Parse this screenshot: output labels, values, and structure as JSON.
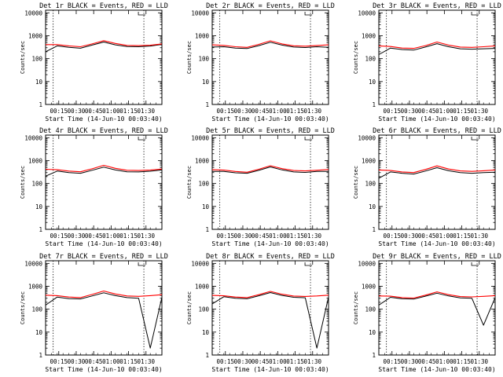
{
  "chart_data": {
    "type": "line",
    "layout": "3x3 grid",
    "xlabel": "Start Time (14-Jun-10 00:03:40)",
    "ylabel": "Counts/sec",
    "yscale": "log",
    "ylim": [
      1,
      13000
    ],
    "xlim_minutes": [
      0,
      100
    ],
    "xtick_values_minutes": [
      11.33,
      26.33,
      41.33,
      56.33,
      71.33,
      86.33
    ],
    "xtick_labels": [
      "00:15",
      "00:30",
      "00:45",
      "01:00",
      "01:15",
      "01:30"
    ],
    "ytick_values": [
      1,
      10,
      100,
      1000,
      10000
    ],
    "ytick_labels": [
      "1",
      "10",
      "100",
      "1000",
      "10000"
    ],
    "series_colors": {
      "events": "#000000",
      "lld": "#ff0000"
    },
    "vertical_markers_minutes": [
      6.5,
      84.5
    ],
    "x_minutes": [
      0,
      10,
      20,
      30,
      40,
      50,
      60,
      70,
      80,
      90,
      100
    ],
    "panels": [
      {
        "title": "Det 1r BLACK = Events, RED = LLD",
        "series": [
          {
            "name": "Events",
            "color": "#000000",
            "values": [
              200,
              360,
              310,
              285,
              390,
              530,
              400,
              335,
              330,
              355,
              420
            ]
          },
          {
            "name": "LLD",
            "color": "#ff0000",
            "values": [
              410,
              410,
              360,
              330,
              440,
              610,
              460,
              380,
              370,
              385,
              440
            ]
          }
        ]
      },
      {
        "title": "Det 2r BLACK = Events, RED = LLD",
        "series": [
          {
            "name": "Events",
            "color": "#000000",
            "values": [
              320,
              330,
              290,
              275,
              370,
              520,
              390,
              320,
              305,
              330,
              310
            ]
          },
          {
            "name": "LLD",
            "color": "#ff0000",
            "values": [
              400,
              380,
              330,
              310,
              420,
              600,
              440,
              365,
              350,
              375,
              400
            ]
          }
        ]
      },
      {
        "title": "Det 3r BLACK = Events, RED = LLD",
        "series": [
          {
            "name": "Events",
            "color": "#000000",
            "values": [
              150,
              290,
              250,
              235,
              320,
              450,
              330,
              270,
              260,
              270,
              280
            ]
          },
          {
            "name": "LLD",
            "color": "#ff0000",
            "values": [
              360,
              340,
              290,
              280,
              370,
              530,
              390,
              320,
              310,
              330,
              360
            ]
          }
        ]
      },
      {
        "title": "Det 4r BLACK = Events, RED = LLD",
        "series": [
          {
            "name": "Events",
            "color": "#000000",
            "values": [
              210,
              350,
              300,
              280,
              380,
              520,
              390,
              325,
              320,
              345,
              390
            ]
          },
          {
            "name": "LLD",
            "color": "#ff0000",
            "values": [
              420,
              400,
              350,
              325,
              440,
              620,
              460,
              380,
              370,
              385,
              430
            ]
          }
        ]
      },
      {
        "title": "Det 5r BLACK = Events, RED = LLD",
        "series": [
          {
            "name": "Events",
            "color": "#000000",
            "values": [
              340,
              340,
              295,
              280,
              375,
              530,
              395,
              320,
              305,
              335,
              340
            ]
          },
          {
            "name": "LLD",
            "color": "#ff0000",
            "values": [
              400,
              385,
              335,
              310,
              420,
              600,
              445,
              370,
              355,
              380,
              410
            ]
          }
        ]
      },
      {
        "title": "Det 6r BLACK = Events, RED = LLD",
        "series": [
          {
            "name": "Events",
            "color": "#000000",
            "values": [
              170,
              320,
              280,
              260,
              350,
              490,
              360,
              300,
              280,
              300,
              310
            ]
          },
          {
            "name": "LLD",
            "color": "#ff0000",
            "values": [
              390,
              370,
              320,
              300,
              410,
              590,
              430,
              355,
              340,
              360,
              390
            ]
          }
        ]
      },
      {
        "title": "Det 7r BLACK = Events, RED = LLD",
        "series": [
          {
            "name": "Events",
            "color": "#000000",
            "values": [
              150,
              340,
              290,
              280,
              380,
              520,
              390,
              320,
              300,
              2,
              330
            ]
          },
          {
            "name": "LLD",
            "color": "#ff0000",
            "values": [
              410,
              390,
              340,
              320,
              440,
              620,
              460,
              380,
              365,
              390,
              430
            ]
          }
        ]
      },
      {
        "title": "Det 8r BLACK = Events, RED = LLD",
        "series": [
          {
            "name": "Events",
            "color": "#000000",
            "values": [
              170,
              350,
              300,
              285,
              385,
              530,
              400,
              330,
              315,
              2,
              340
            ]
          },
          {
            "name": "LLD",
            "color": "#ff0000",
            "values": [
              400,
              385,
              340,
              320,
              430,
              600,
              450,
              375,
              360,
              380,
              410
            ]
          }
        ]
      },
      {
        "title": "Det 9r BLACK = Events, RED = LLD",
        "series": [
          {
            "name": "Events",
            "color": "#000000",
            "values": [
              150,
              330,
              285,
              275,
              370,
              500,
              380,
              310,
              300,
              20,
              320
            ]
          },
          {
            "name": "LLD",
            "color": "#ff0000",
            "values": [
              380,
              370,
              320,
              305,
              410,
              570,
              430,
              355,
              345,
              365,
              390
            ]
          }
        ]
      }
    ]
  }
}
